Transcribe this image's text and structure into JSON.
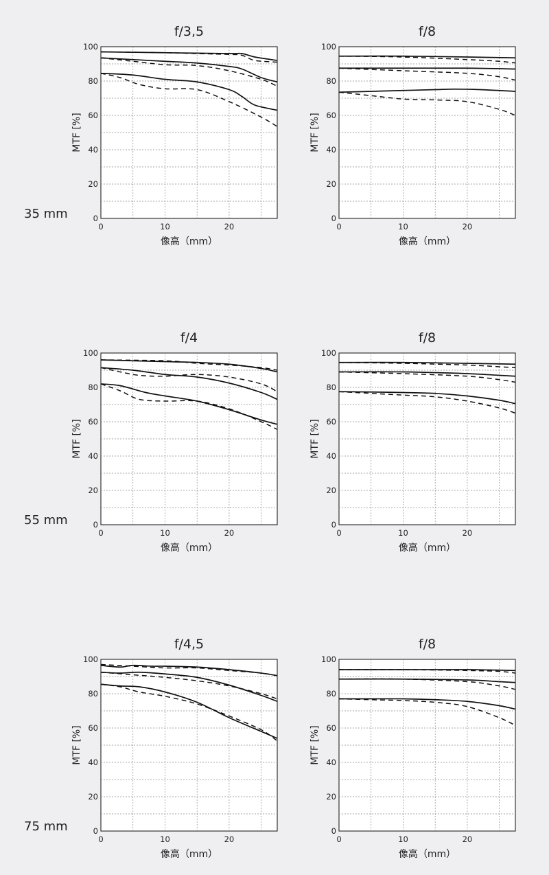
{
  "focal_lengths": [
    "35 mm",
    "55 mm",
    "75 mm"
  ],
  "chart_data": [
    {
      "type": "line",
      "title": "f/3,5",
      "xlabel": "像高（mm）",
      "ylabel": "MTF [%]",
      "xlim": [
        0,
        27.5
      ],
      "ylim": [
        0,
        100
      ],
      "xticks": [
        0,
        10,
        20
      ],
      "yticks": [
        0,
        20,
        40,
        60,
        80,
        100
      ],
      "grid": true,
      "series": [
        {
          "style": "solid",
          "x": [
            0,
            10,
            20,
            22,
            24,
            27.5
          ],
          "y": [
            97,
            96.5,
            96,
            96,
            94,
            92
          ]
        },
        {
          "style": "dashed",
          "x": [
            0,
            10,
            15,
            20,
            22,
            24,
            27.5
          ],
          "y": [
            97,
            96.5,
            96,
            95.5,
            95,
            92,
            91
          ]
        },
        {
          "style": "solid",
          "x": [
            0,
            10,
            15,
            20,
            22,
            25,
            27.5
          ],
          "y": [
            93.5,
            91.5,
            90.5,
            88.5,
            87,
            82,
            79.5
          ]
        },
        {
          "style": "dashed",
          "x": [
            0,
            5,
            10,
            15,
            20,
            25,
            27.5
          ],
          "y": [
            93.5,
            91.5,
            89.5,
            89,
            86,
            81,
            77
          ]
        },
        {
          "style": "solid",
          "x": [
            0,
            5,
            10,
            15,
            20,
            22,
            24,
            27.5
          ],
          "y": [
            84.5,
            83.5,
            81,
            79.5,
            75,
            71,
            66,
            63
          ]
        },
        {
          "style": "dashed",
          "x": [
            0,
            3,
            6,
            10,
            15,
            20,
            25,
            27.5
          ],
          "y": [
            84.5,
            82,
            78,
            75.5,
            75,
            68,
            59,
            53.5
          ]
        }
      ]
    },
    {
      "type": "line",
      "title": "f/8",
      "xlabel": "像高（mm）",
      "ylabel": "MTF [%]",
      "xlim": [
        0,
        27.5
      ],
      "ylim": [
        0,
        100
      ],
      "xticks": [
        0,
        10,
        20
      ],
      "yticks": [
        0,
        20,
        40,
        60,
        80,
        100
      ],
      "grid": true,
      "series": [
        {
          "style": "solid",
          "x": [
            0,
            10,
            20,
            27.5
          ],
          "y": [
            94.5,
            94.5,
            94,
            93.5
          ]
        },
        {
          "style": "dashed",
          "x": [
            0,
            10,
            20,
            25,
            27.5
          ],
          "y": [
            94.5,
            94,
            92.5,
            91.5,
            90.5
          ]
        },
        {
          "style": "solid",
          "x": [
            0,
            10,
            20,
            27.5
          ],
          "y": [
            87.5,
            87.5,
            87.5,
            87
          ]
        },
        {
          "style": "dashed",
          "x": [
            0,
            10,
            20,
            25,
            27.5
          ],
          "y": [
            87.5,
            86,
            84.5,
            82.5,
            80.5
          ]
        },
        {
          "style": "solid",
          "x": [
            0,
            5,
            10,
            15,
            18,
            22,
            27.5
          ],
          "y": [
            73.5,
            74,
            74.5,
            75,
            75.3,
            75,
            74
          ]
        },
        {
          "style": "dashed",
          "x": [
            0,
            5,
            10,
            15,
            20,
            25,
            27.5
          ],
          "y": [
            73.5,
            71.5,
            69.5,
            69,
            68,
            63.5,
            60
          ]
        }
      ]
    },
    {
      "type": "line",
      "title": "f/4",
      "xlabel": "像高（mm）",
      "ylabel": "MTF [%]",
      "xlim": [
        0,
        27.5
      ],
      "ylim": [
        0,
        100
      ],
      "xticks": [
        0,
        10,
        20
      ],
      "yticks": [
        0,
        20,
        40,
        60,
        80,
        100
      ],
      "grid": true,
      "series": [
        {
          "style": "solid",
          "x": [
            0,
            10,
            15,
            20,
            25,
            27.5
          ],
          "y": [
            96,
            95,
            94.5,
            93.5,
            91,
            89
          ]
        },
        {
          "style": "dashed",
          "x": [
            0,
            10,
            15,
            20,
            25,
            27.5
          ],
          "y": [
            96,
            95.5,
            94,
            93,
            91.5,
            90
          ]
        },
        {
          "style": "solid",
          "x": [
            0,
            5,
            10,
            15,
            20,
            25,
            27.5
          ],
          "y": [
            91.5,
            90,
            87.5,
            86,
            82.5,
            77,
            73
          ]
        },
        {
          "style": "dashed",
          "x": [
            0,
            3,
            6,
            10,
            15,
            20,
            25,
            27.5
          ],
          "y": [
            91.5,
            89,
            87,
            86.5,
            87.5,
            86,
            82,
            77.5
          ]
        },
        {
          "style": "solid",
          "x": [
            0,
            3,
            7,
            10,
            15,
            20,
            25,
            27.5
          ],
          "y": [
            82,
            81,
            77,
            75,
            72,
            67,
            61,
            58.5
          ]
        },
        {
          "style": "dashed",
          "x": [
            0,
            3,
            6,
            10,
            15,
            20,
            25,
            27.5
          ],
          "y": [
            82,
            78,
            73,
            72,
            72,
            67.5,
            60,
            55.5
          ]
        }
      ]
    },
    {
      "type": "line",
      "title": "f/8",
      "xlabel": "像高（mm）",
      "ylabel": "MTF [%]",
      "xlim": [
        0,
        27.5
      ],
      "ylim": [
        0,
        100
      ],
      "xticks": [
        0,
        10,
        20
      ],
      "yticks": [
        0,
        20,
        40,
        60,
        80,
        100
      ],
      "grid": true,
      "series": [
        {
          "style": "solid",
          "x": [
            0,
            10,
            20,
            27.5
          ],
          "y": [
            94.5,
            94.5,
            94,
            93.5
          ]
        },
        {
          "style": "dashed",
          "x": [
            0,
            10,
            20,
            25,
            27.5
          ],
          "y": [
            94.5,
            94,
            93,
            92,
            91.5
          ]
        },
        {
          "style": "solid",
          "x": [
            0,
            10,
            20,
            25,
            27.5
          ],
          "y": [
            89,
            89,
            88,
            87,
            86.5
          ]
        },
        {
          "style": "dashed",
          "x": [
            0,
            10,
            20,
            25,
            27.5
          ],
          "y": [
            89,
            88,
            86.5,
            84.5,
            83
          ]
        },
        {
          "style": "solid",
          "x": [
            0,
            5,
            10,
            15,
            20,
            25,
            27.5
          ],
          "y": [
            77.5,
            77.3,
            77,
            76.5,
            75,
            72.5,
            70.5
          ]
        },
        {
          "style": "dashed",
          "x": [
            0,
            5,
            10,
            15,
            20,
            25,
            27.5
          ],
          "y": [
            77.5,
            76.5,
            75.5,
            74.5,
            72,
            68,
            65
          ]
        }
      ]
    },
    {
      "type": "line",
      "title": "f/4,5",
      "xlabel": "像高（mm）",
      "ylabel": "MTF [%]",
      "xlim": [
        0,
        27.5
      ],
      "ylim": [
        0,
        100
      ],
      "xticks": [
        0,
        10,
        20
      ],
      "yticks": [
        0,
        20,
        40,
        60,
        80,
        100
      ],
      "grid": true,
      "series": [
        {
          "style": "solid",
          "x": [
            0,
            3,
            5,
            8,
            10,
            15,
            20,
            25,
            27.5
          ],
          "y": [
            96.5,
            95.5,
            96.5,
            96,
            96,
            95.5,
            94,
            92,
            90.5
          ]
        },
        {
          "style": "dashed",
          "x": [
            0,
            5,
            10,
            15,
            20,
            25,
            27.5
          ],
          "y": [
            97,
            96,
            95,
            95,
            93.5,
            92,
            90.5
          ]
        },
        {
          "style": "solid",
          "x": [
            0,
            3,
            6,
            10,
            15,
            20,
            25,
            27.5
          ],
          "y": [
            92.5,
            92,
            92.5,
            91.5,
            89.5,
            85,
            79,
            75.5
          ]
        },
        {
          "style": "dashed",
          "x": [
            0,
            5,
            10,
            15,
            20,
            25,
            27.5
          ],
          "y": [
            92.5,
            91,
            89.5,
            87.5,
            84.5,
            80,
            77
          ]
        },
        {
          "style": "solid",
          "x": [
            0,
            3,
            6,
            10,
            15,
            20,
            25,
            27.5
          ],
          "y": [
            85.5,
            84.5,
            84,
            81,
            75,
            66,
            58,
            54
          ]
        },
        {
          "style": "dashed",
          "x": [
            0,
            3,
            6,
            10,
            15,
            20,
            25,
            27.5
          ],
          "y": [
            85.5,
            84,
            81,
            78.5,
            74,
            67,
            59,
            52.5
          ]
        }
      ]
    },
    {
      "type": "line",
      "title": "f/8",
      "xlabel": "像高（mm）",
      "ylabel": "MTF [%]",
      "xlim": [
        0,
        27.5
      ],
      "ylim": [
        0,
        100
      ],
      "xticks": [
        0,
        10,
        20
      ],
      "yticks": [
        0,
        20,
        40,
        60,
        80,
        100
      ],
      "grid": true,
      "series": [
        {
          "style": "solid",
          "x": [
            0,
            10,
            20,
            27.5
          ],
          "y": [
            94,
            94,
            94,
            93.5
          ]
        },
        {
          "style": "dashed",
          "x": [
            0,
            10,
            20,
            25,
            27.5
          ],
          "y": [
            94,
            94,
            93.5,
            93,
            92
          ]
        },
        {
          "style": "solid",
          "x": [
            0,
            10,
            20,
            25,
            27.5
          ],
          "y": [
            88.5,
            88.5,
            88,
            87,
            86.5
          ]
        },
        {
          "style": "dashed",
          "x": [
            0,
            10,
            20,
            25,
            27.5
          ],
          "y": [
            88.5,
            88.5,
            87,
            84.5,
            82.5
          ]
        },
        {
          "style": "solid",
          "x": [
            0,
            5,
            10,
            15,
            20,
            25,
            27.5
          ],
          "y": [
            77,
            77,
            77,
            76.5,
            75.5,
            73,
            71
          ]
        },
        {
          "style": "dashed",
          "x": [
            0,
            5,
            10,
            15,
            20,
            25,
            27.5
          ],
          "y": [
            77,
            76.5,
            76,
            75,
            72.5,
            66,
            61.5
          ]
        }
      ]
    }
  ]
}
